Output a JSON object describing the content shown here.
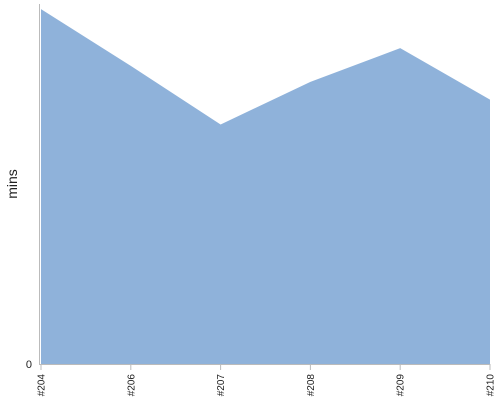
{
  "chart_data": {
    "type": "area",
    "categories": [
      "#204",
      "#206",
      "#207",
      "#208",
      "#209",
      "#210"
    ],
    "series": [
      {
        "values": [
          100,
          84,
          67.5,
          79.5,
          89,
          74.5
        ]
      }
    ],
    "title": "",
    "xlabel": "",
    "ylabel": "mins",
    "y_tick_labels": [
      "0"
    ],
    "ylim": [
      0,
      102
    ],
    "grid": false,
    "legend": "none",
    "colors": {
      "fill": "#8fb2da",
      "axis": "#bbbbbb",
      "text": "#222222"
    }
  }
}
